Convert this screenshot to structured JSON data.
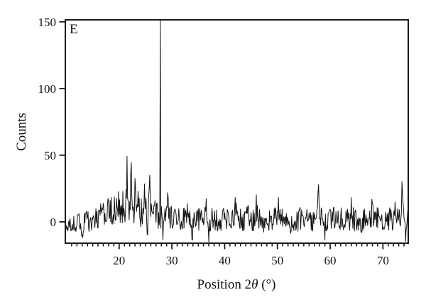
{
  "page": {
    "background": "#ffffff"
  },
  "chart_data": {
    "type": "line",
    "title": "",
    "panel_label": "E",
    "xlabel": "Position 2θ (°)",
    "xlabel_parts": {
      "prefix": "Position 2",
      "theta": "θ",
      "suffix": " (°)"
    },
    "ylabel": "Counts",
    "xlim": [
      9.8,
      74.8
    ],
    "ylim": [
      -16,
      151.5
    ],
    "xticks": [
      20,
      30,
      40,
      50,
      60,
      70
    ],
    "yticks": [
      0,
      50,
      100,
      150
    ],
    "x_minor_step": 1,
    "grid": false,
    "legend": "none",
    "line_color": "#141414",
    "frame_color": "#1a1a1a",
    "background": "#ffffff",
    "trace": {
      "description": "noisy XRD counts trace around 0 with broad amorphous hump near 22 deg and one sharp clipped peak at 27.8 deg",
      "step": 0.1,
      "seed": 20,
      "noise_amplitude": 9,
      "edge_noise_factor": 0.55,
      "edge_ramp": 4,
      "baseline_left": -4,
      "baseline": 2,
      "baseline_ramp_end": 15,
      "hump": {
        "center": 22,
        "sigma": 3.4,
        "height": 10,
        "noise_boost": 0.5
      },
      "main_peak": {
        "x": 27.8,
        "height": 165,
        "clipped_at_top": true
      },
      "peaks": [
        [
          21.5,
          30
        ],
        [
          22.3,
          22
        ],
        [
          23.1,
          18
        ],
        [
          24.9,
          16
        ],
        [
          25.8,
          20
        ],
        [
          29.2,
          12
        ],
        [
          33.0,
          10
        ],
        [
          36.5,
          10
        ],
        [
          42.0,
          16
        ],
        [
          44.3,
          12
        ],
        [
          46.0,
          10
        ],
        [
          50.2,
          10
        ],
        [
          57.8,
          19
        ],
        [
          61.5,
          8
        ],
        [
          64.0,
          10
        ],
        [
          68.0,
          15
        ],
        [
          70.5,
          8
        ],
        [
          72.3,
          16
        ],
        [
          73.6,
          20
        ]
      ],
      "dips": [
        [
          13.0,
          10
        ],
        [
          15.3,
          12
        ],
        [
          18.9,
          10
        ],
        [
          24.0,
          12
        ],
        [
          25.4,
          12
        ],
        [
          28.3,
          16
        ],
        [
          31.0,
          10
        ],
        [
          33.8,
          12
        ],
        [
          37.0,
          10
        ],
        [
          41.0,
          8
        ],
        [
          47.5,
          8
        ],
        [
          52.5,
          11
        ],
        [
          55.2,
          10
        ],
        [
          59.0,
          8
        ],
        [
          66.0,
          8
        ],
        [
          74.3,
          10
        ]
      ]
    }
  }
}
